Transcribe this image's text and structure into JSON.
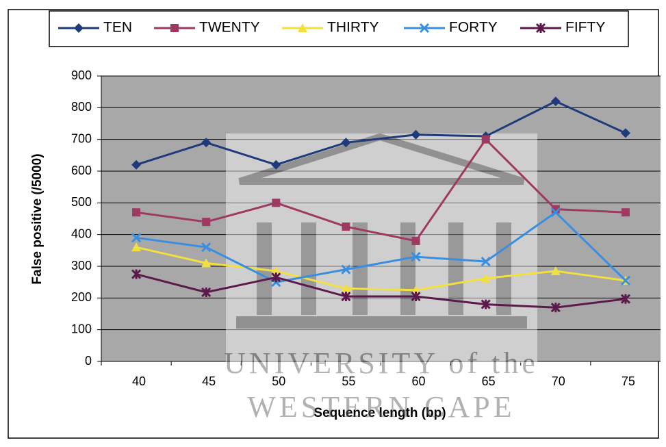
{
  "chart_data": {
    "type": "line",
    "x_label": "Sequence length (bp)",
    "y_label": "False positive (/5000)",
    "categories": [
      "40",
      "45",
      "50",
      "55",
      "60",
      "65",
      "70",
      "75"
    ],
    "series": [
      {
        "name": "TEN",
        "color": "#1f3a7a",
        "marker": "diamond",
        "values": [
          620,
          690,
          620,
          690,
          715,
          710,
          820,
          720
        ]
      },
      {
        "name": "TWENTY",
        "color": "#9e3a62",
        "marker": "square",
        "values": [
          470,
          440,
          500,
          425,
          380,
          700,
          480,
          470
        ]
      },
      {
        "name": "THIRTY",
        "color": "#f2e040",
        "marker": "triangle",
        "values": [
          360,
          310,
          285,
          230,
          225,
          262,
          285,
          255
        ]
      },
      {
        "name": "FORTY",
        "color": "#3a8ee0",
        "marker": "cross",
        "values": [
          390,
          360,
          250,
          290,
          330,
          315,
          470,
          255
        ]
      },
      {
        "name": "FIFTY",
        "color": "#5b1a4a",
        "marker": "star",
        "values": [
          275,
          218,
          265,
          205,
          205,
          180,
          170,
          197
        ]
      }
    ],
    "ylim": [
      0,
      900
    ],
    "yticks": [
      0,
      100,
      200,
      300,
      400,
      500,
      600,
      700,
      800,
      900
    ],
    "grid": true,
    "legend": "top",
    "watermark": [
      "UNIVERSITY of the",
      "WESTERN CAPE"
    ]
  }
}
